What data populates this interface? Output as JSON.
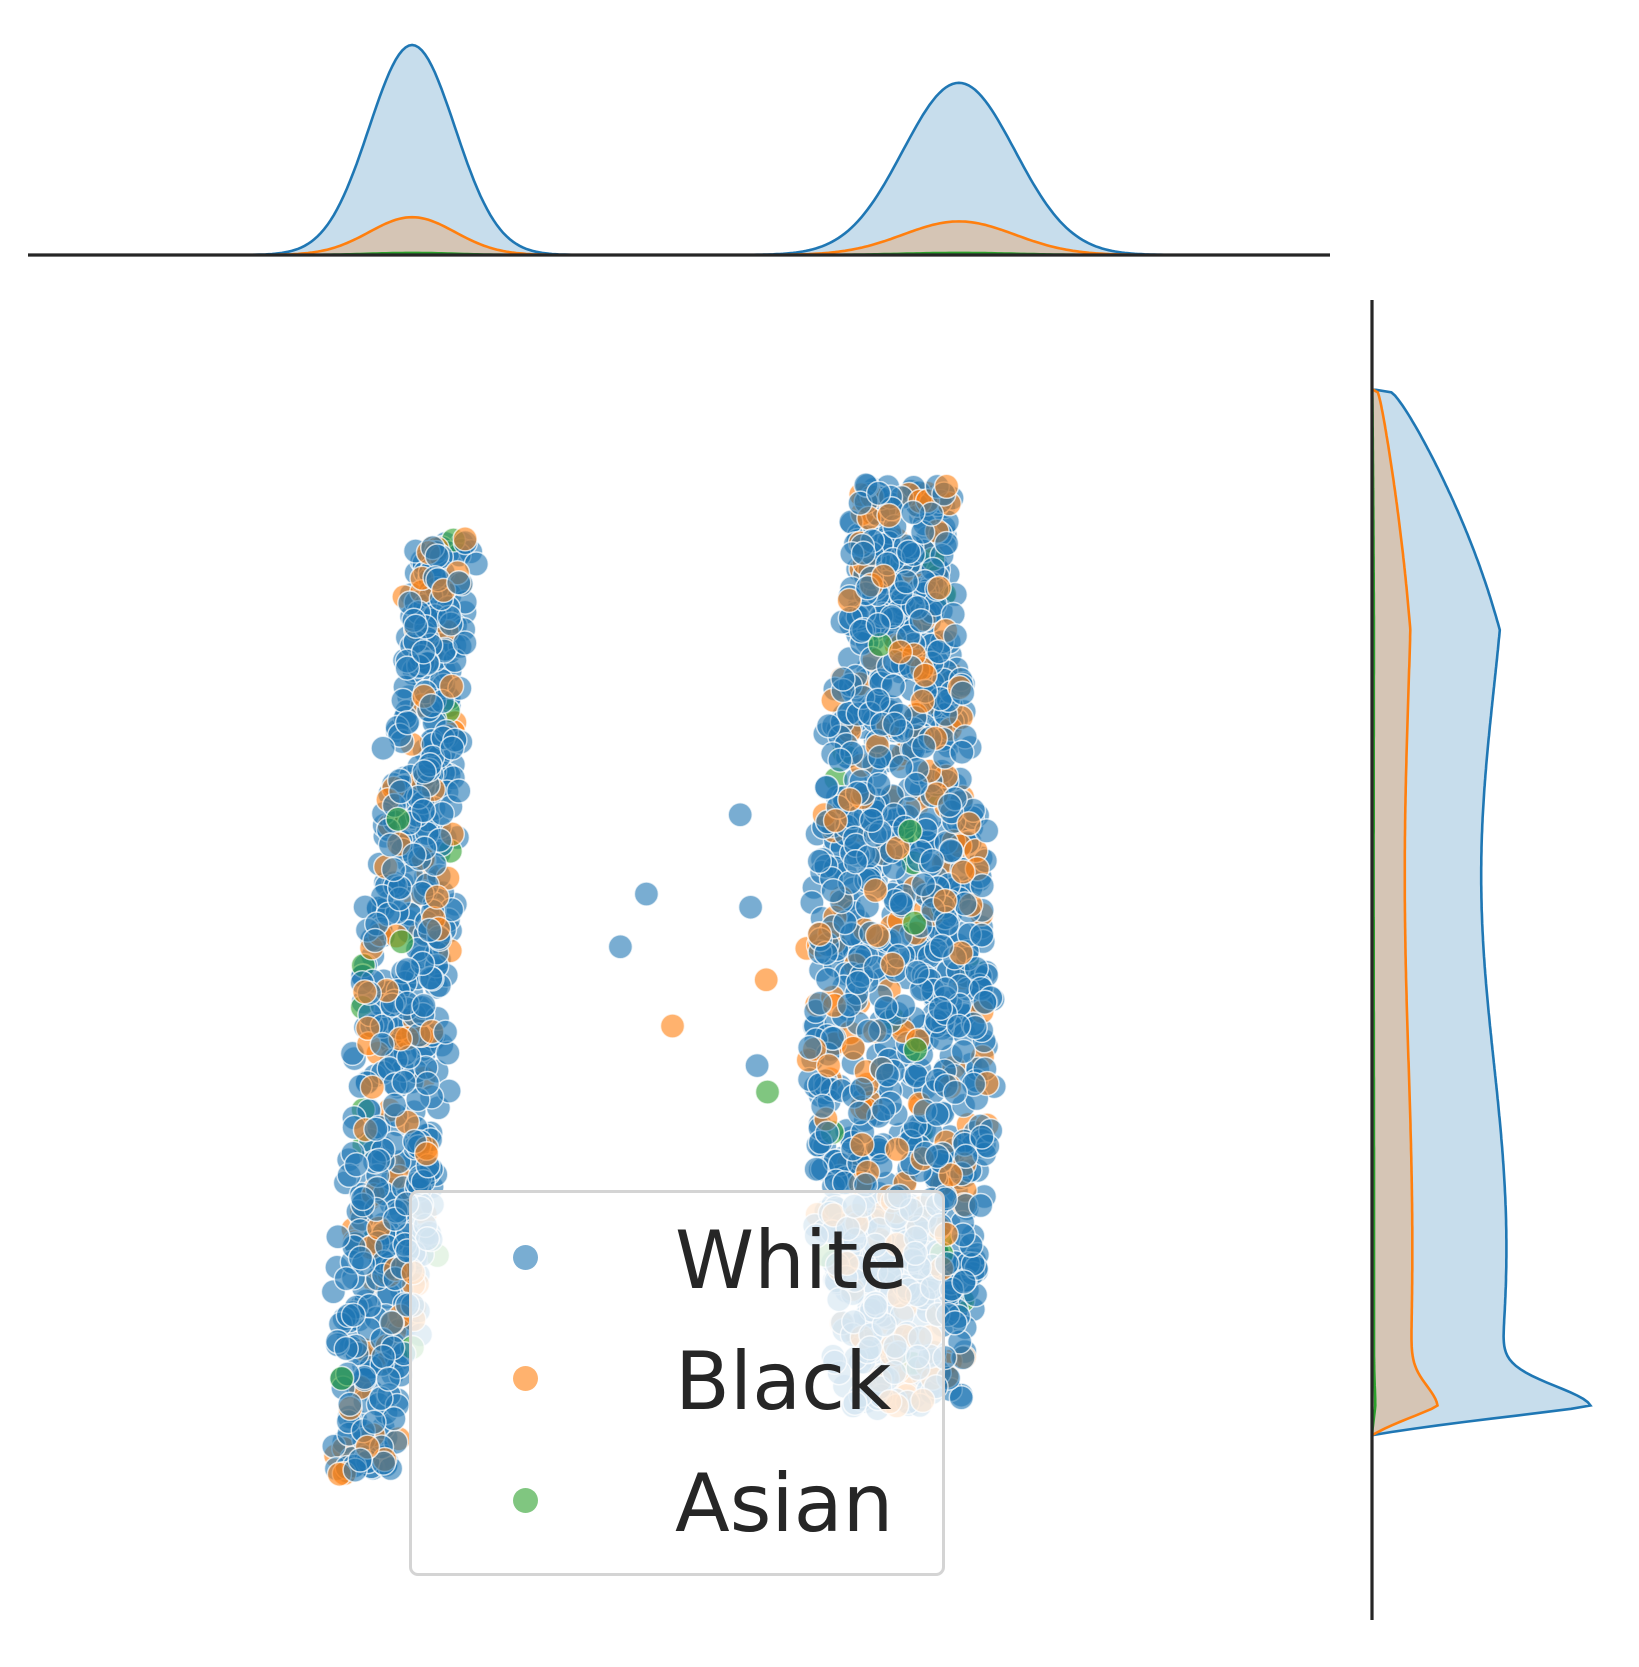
{
  "chart_data": {
    "type": "scatter",
    "title": "",
    "xlabel": "",
    "ylabel": "",
    "xlim": [
      0,
      100
    ],
    "ylim": [
      0,
      100
    ],
    "grid": false,
    "legend_placement": "lower center",
    "marginals": "kde",
    "series": [
      {
        "name": "White",
        "color": "#1f77b4"
      },
      {
        "name": "Black",
        "color": "#ff7f0e"
      },
      {
        "name": "Asian",
        "color": "#2ca02c"
      }
    ],
    "clusters": [
      {
        "label": "left",
        "x_center": 29,
        "x_halfwidth": 3.5,
        "y_low": 11,
        "y_high": 82,
        "slant": 6
      },
      {
        "label": "right",
        "x_center": 67,
        "x_halfwidth": 7,
        "y_low": 16,
        "y_high": 86,
        "slant": 0
      }
    ],
    "composition": {
      "White": 0.83,
      "Black": 0.15,
      "Asian": 0.02
    },
    "outliers": [
      {
        "series": "White",
        "x": 45.5,
        "y": 51
      },
      {
        "series": "White",
        "x": 47.5,
        "y": 55
      },
      {
        "series": "Black",
        "x": 49.5,
        "y": 45
      },
      {
        "series": "White",
        "x": 56,
        "y": 42
      },
      {
        "series": "Asian",
        "x": 56.8,
        "y": 40
      },
      {
        "series": "White",
        "x": 55.5,
        "y": 54
      },
      {
        "series": "Black",
        "x": 56.7,
        "y": 48.5
      },
      {
        "series": "White",
        "x": 54.7,
        "y": 61
      }
    ],
    "marginal_x": {
      "peaks": [
        {
          "x": 29.5,
          "White": 1.0,
          "Black": 0.18,
          "Asian": 0.01
        },
        {
          "x": 71.5,
          "White": 0.82,
          "Black": 0.16,
          "Asian": 0.01
        }
      ]
    },
    "marginal_y": {
      "peak_y": 16,
      "span": [
        14,
        93
      ]
    }
  },
  "legend": {
    "items": [
      {
        "label": "White",
        "color": "#1f77b4"
      },
      {
        "label": "Black",
        "color": "#ff7f0e"
      },
      {
        "label": "Asian",
        "color": "#2ca02c"
      }
    ]
  }
}
